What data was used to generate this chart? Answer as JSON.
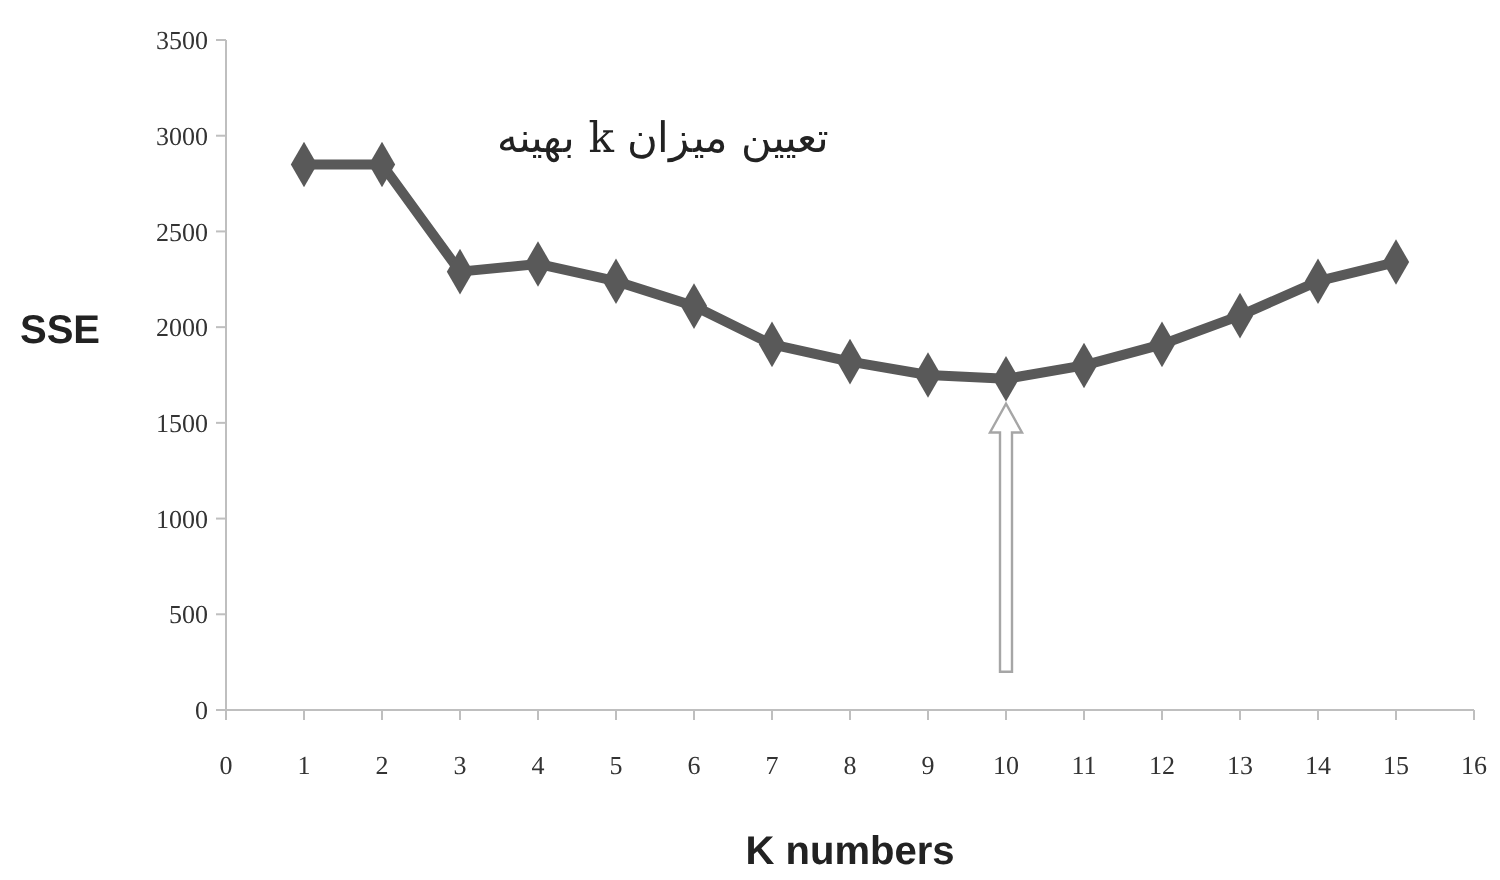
{
  "chart_data": {
    "type": "line",
    "title": "تعیین میزان k بهینه",
    "xlabel": "K numbers",
    "ylabel": "SSE",
    "x": [
      1,
      2,
      3,
      4,
      5,
      6,
      7,
      8,
      9,
      10,
      11,
      12,
      13,
      14,
      15
    ],
    "series": [
      {
        "color": "#595959",
        "values": [
          2850,
          2850,
          2290,
          2330,
          2240,
          2110,
          1910,
          1820,
          1750,
          1730,
          1800,
          1910,
          2060,
          2240,
          2340
        ]
      }
    ],
    "xlim": [
      0,
      16
    ],
    "xticks": [
      0,
      1,
      2,
      3,
      4,
      5,
      6,
      7,
      8,
      9,
      10,
      11,
      12,
      13,
      14,
      15,
      16
    ],
    "ylim": [
      0,
      3500
    ],
    "yticks": [
      0,
      500,
      1000,
      1500,
      2000,
      2500,
      3000,
      3500
    ],
    "grid": false,
    "marker": "diamond",
    "line_style": "solid"
  }
}
